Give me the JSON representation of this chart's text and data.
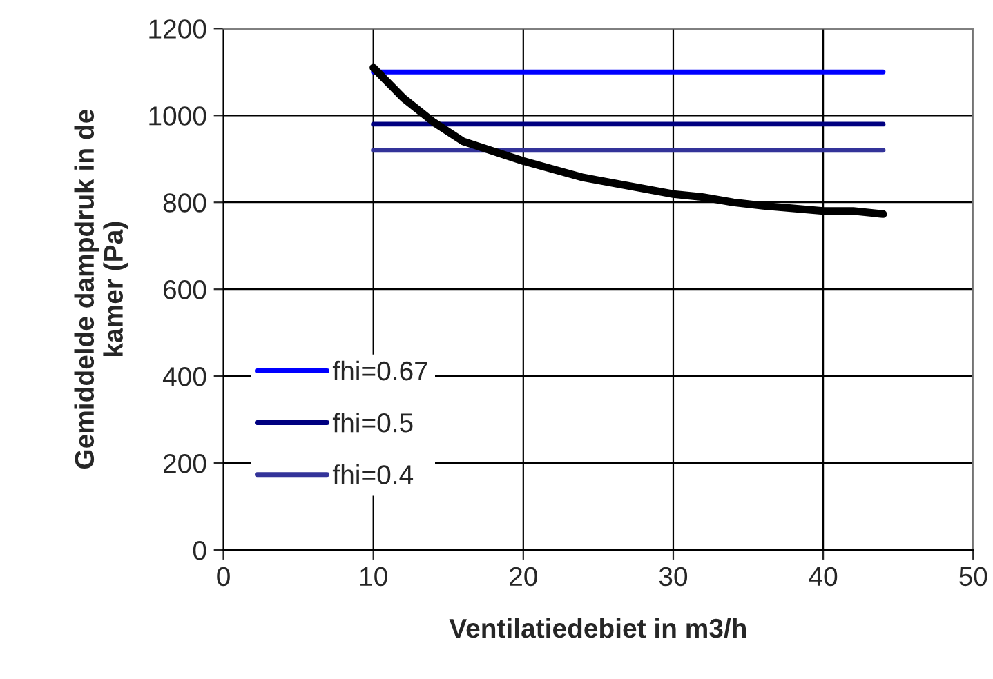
{
  "chart_data": {
    "type": "line",
    "xlabel": "Ventilatiedebiet in m3/h",
    "ylabel": "Gemiddelde dampdruk in de\nkamer (Pa)",
    "xlim": [
      0,
      50
    ],
    "xticks": [
      0,
      10,
      20,
      30,
      40,
      50
    ],
    "ylim": [
      0,
      1200
    ],
    "yticks": [
      0,
      200,
      400,
      600,
      800,
      1000,
      1200
    ],
    "grid": true,
    "legend": "bottom left",
    "marker": "none",
    "line_style": "solid",
    "series": [
      {
        "color": "#000000",
        "x": [
          10,
          12,
          14,
          16,
          20,
          24,
          30,
          32,
          34,
          36,
          40,
          42,
          44
        ],
        "values": [
          1110,
          1040,
          985,
          940,
          895,
          857,
          819,
          812,
          800,
          792,
          780,
          780,
          773
        ]
      },
      {
        "name": "fhi=0.67",
        "color": "#0000ff",
        "x": [
          10,
          44
        ],
        "values": [
          1100,
          1100
        ]
      },
      {
        "name": "fhi=0.5",
        "color": "#000080",
        "x": [
          10,
          44
        ],
        "values": [
          980,
          980
        ]
      },
      {
        "name": "fhi=0.4",
        "color": "#333399",
        "x": [
          10,
          44
        ],
        "values": [
          920,
          920
        ]
      }
    ]
  }
}
